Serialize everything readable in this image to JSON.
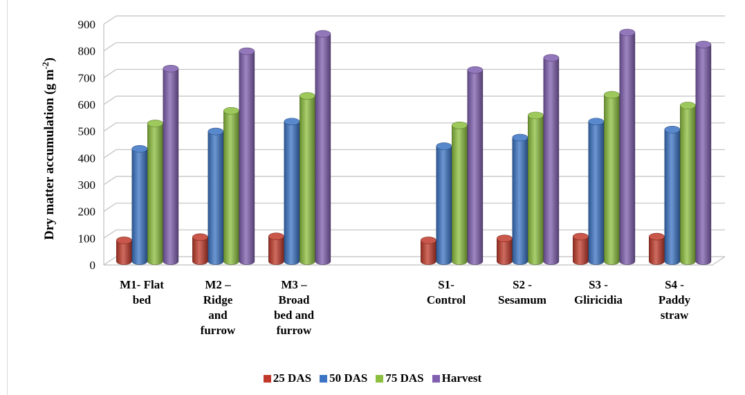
{
  "chart_data": {
    "type": "bar",
    "categories": [
      [
        "M1- Flat",
        "bed"
      ],
      [
        "M2 –",
        "Ridge",
        "and",
        "furrow"
      ],
      [
        "M3 –",
        "Broad",
        "bed and",
        "furrow"
      ],
      [],
      [
        "S1-",
        "Control"
      ],
      [
        "S2 -",
        "Sesamum"
      ],
      [
        "S3 -",
        "Gliricidia"
      ],
      [
        "S4 -",
        "Paddy",
        "straw"
      ]
    ],
    "series": [
      {
        "name": "25 DAS",
        "color": "#c0392b",
        "values": [
          78,
          90,
          93,
          null,
          78,
          85,
          92,
          92
        ]
      },
      {
        "name": "50 DAS",
        "color": "#3b74c4",
        "values": [
          420,
          485,
          522,
          null,
          430,
          462,
          522,
          492
        ]
      },
      {
        "name": "75 DAS",
        "color": "#8cbf3f",
        "values": [
          515,
          562,
          618,
          null,
          508,
          545,
          622,
          582
        ]
      },
      {
        "name": "Harvest",
        "color": "#7f5fae",
        "values": [
          720,
          785,
          850,
          null,
          715,
          760,
          855,
          810
        ]
      }
    ],
    "yticks": [
      0,
      100,
      200,
      300,
      400,
      500,
      600,
      700,
      800,
      900
    ],
    "ylim": [
      0,
      900
    ],
    "ylabel_main": "Dry matter accumulation (g m",
    "ylabel_sup": "-2",
    "ylabel_end": ")",
    "legend_position": "bottom",
    "grid": true
  }
}
